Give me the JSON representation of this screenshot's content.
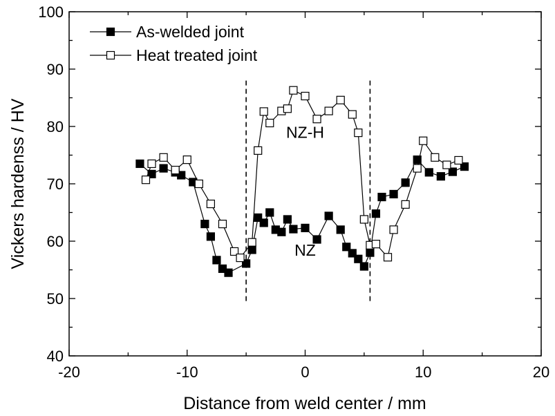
{
  "chart_data": {
    "type": "scatter",
    "title": "",
    "xlabel": "Distance from weld center / mm",
    "ylabel": "Vickers hardenss / HV",
    "xlim": [
      -20,
      20
    ],
    "ylim": [
      40,
      100
    ],
    "xticks": [
      -20,
      -10,
      0,
      10,
      20
    ],
    "yticks": [
      40,
      50,
      60,
      70,
      80,
      90,
      100
    ],
    "xtick_labels": [
      "-20",
      "-10",
      "0",
      "10",
      "20"
    ],
    "ytick_labels": [
      "40",
      "50",
      "60",
      "70",
      "80",
      "90",
      "100"
    ],
    "grid": false,
    "legend_position": "top-left",
    "series": [
      {
        "name": "As-welded joint",
        "marker": "filled-square",
        "color": "#000000",
        "x": [
          -14,
          -13,
          -12,
          -11,
          -10.5,
          -9.5,
          -8.5,
          -8,
          -7.5,
          -7,
          -6.5,
          -5,
          -4.5,
          -4,
          -3.5,
          -3,
          -2.5,
          -2,
          -1.5,
          -1,
          0,
          1,
          2,
          3,
          3.5,
          4,
          4.5,
          5,
          5.5,
          6,
          6.5,
          7.5,
          8.5,
          9.5,
          10.5,
          11.5,
          12.5,
          13.5
        ],
        "y": [
          73.5,
          71.7,
          72.7,
          72.0,
          71.5,
          70.3,
          63.0,
          60.8,
          56.7,
          55.2,
          54.5,
          56.1,
          58.5,
          64.1,
          63.2,
          65.0,
          62.0,
          61.6,
          63.8,
          62.1,
          62.3,
          60.3,
          64.4,
          62.0,
          59.0,
          57.9,
          56.9,
          55.6,
          58.0,
          64.8,
          67.7,
          68.2,
          70.2,
          74.2,
          72.0,
          71.3,
          72.1,
          73.0
        ],
        "connect": true
      },
      {
        "name": "Heat treated joint",
        "marker": "open-square",
        "color": "#000000",
        "x": [
          -13.5,
          -13,
          -12,
          -11,
          -10,
          -9,
          -8,
          -7,
          -6,
          -5.5,
          -4.5,
          -4,
          -3.5,
          -3,
          -2,
          -1.5,
          -1,
          0,
          1,
          2,
          3,
          4,
          4.5,
          5,
          5.5,
          6,
          7,
          7.5,
          8.5,
          9.5,
          10,
          11,
          12,
          13
        ],
        "y": [
          70.7,
          73.5,
          74.6,
          72.4,
          74.2,
          70.0,
          66.5,
          63.0,
          58.2,
          57.1,
          59.8,
          75.8,
          82.6,
          80.6,
          82.7,
          83.1,
          86.3,
          85.3,
          81.3,
          82.7,
          84.6,
          82.1,
          78.9,
          63.8,
          59.3,
          59.5,
          57.2,
          62.0,
          66.4,
          72.7,
          77.5,
          74.6,
          73.3,
          74.1
        ],
        "connect": true
      }
    ],
    "vertical_dashed_lines_x": [
      -5,
      5.5
    ],
    "annotations": [
      {
        "text": "NZ-H",
        "x": 0,
        "y": 78
      },
      {
        "text": "NZ",
        "x": 0,
        "y": 57.5
      }
    ]
  }
}
